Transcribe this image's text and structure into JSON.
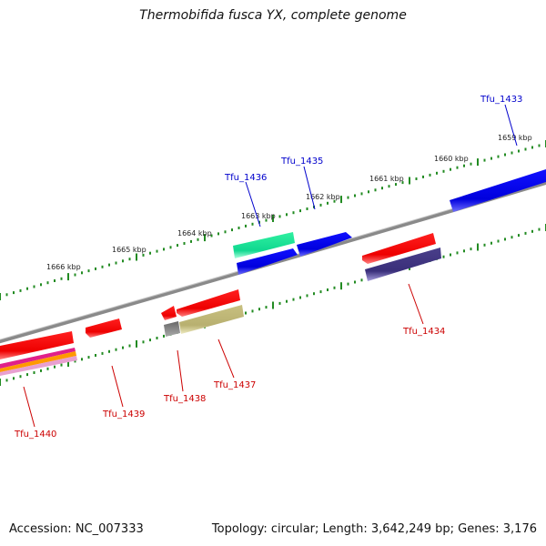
{
  "title": "Thermobifida fusca YX, complete genome",
  "accession_text": "Accession: NC_007333",
  "topology_text": "Topology: circular; Length: 3,642,249 bp; Genes: 3,176",
  "colors": {
    "backbone": "#888888",
    "tick": "#228b22",
    "forward_label": "#0000cc",
    "reverse_label": "#cc0000"
  },
  "kbp_labels": [
    "1659 kbp",
    "1660 kbp",
    "1661 kbp",
    "1662 kbp",
    "1663 kbp",
    "1664 kbp",
    "1665 kbp",
    "1666 kbp"
  ],
  "genes": [
    {
      "name": "Tfu_1433",
      "strand": "forward",
      "color": "#0000ee"
    },
    {
      "name": "Tfu_1434",
      "strand": "reverse",
      "color": "#ff0000"
    },
    {
      "name": "Tfu_1435",
      "strand": "forward",
      "color": "#0000ee"
    },
    {
      "name": "Tfu_1436",
      "strand": "forward",
      "color": "#22ee99"
    },
    {
      "name": "Tfu_1437",
      "strand": "reverse",
      "color": "#ff0000"
    },
    {
      "name": "Tfu_1438",
      "strand": "reverse",
      "color": "#ff0000"
    },
    {
      "name": "Tfu_1439",
      "strand": "reverse",
      "color": "#ff0000"
    },
    {
      "name": "Tfu_1440",
      "strand": "reverse",
      "color": "#ff0000"
    }
  ]
}
